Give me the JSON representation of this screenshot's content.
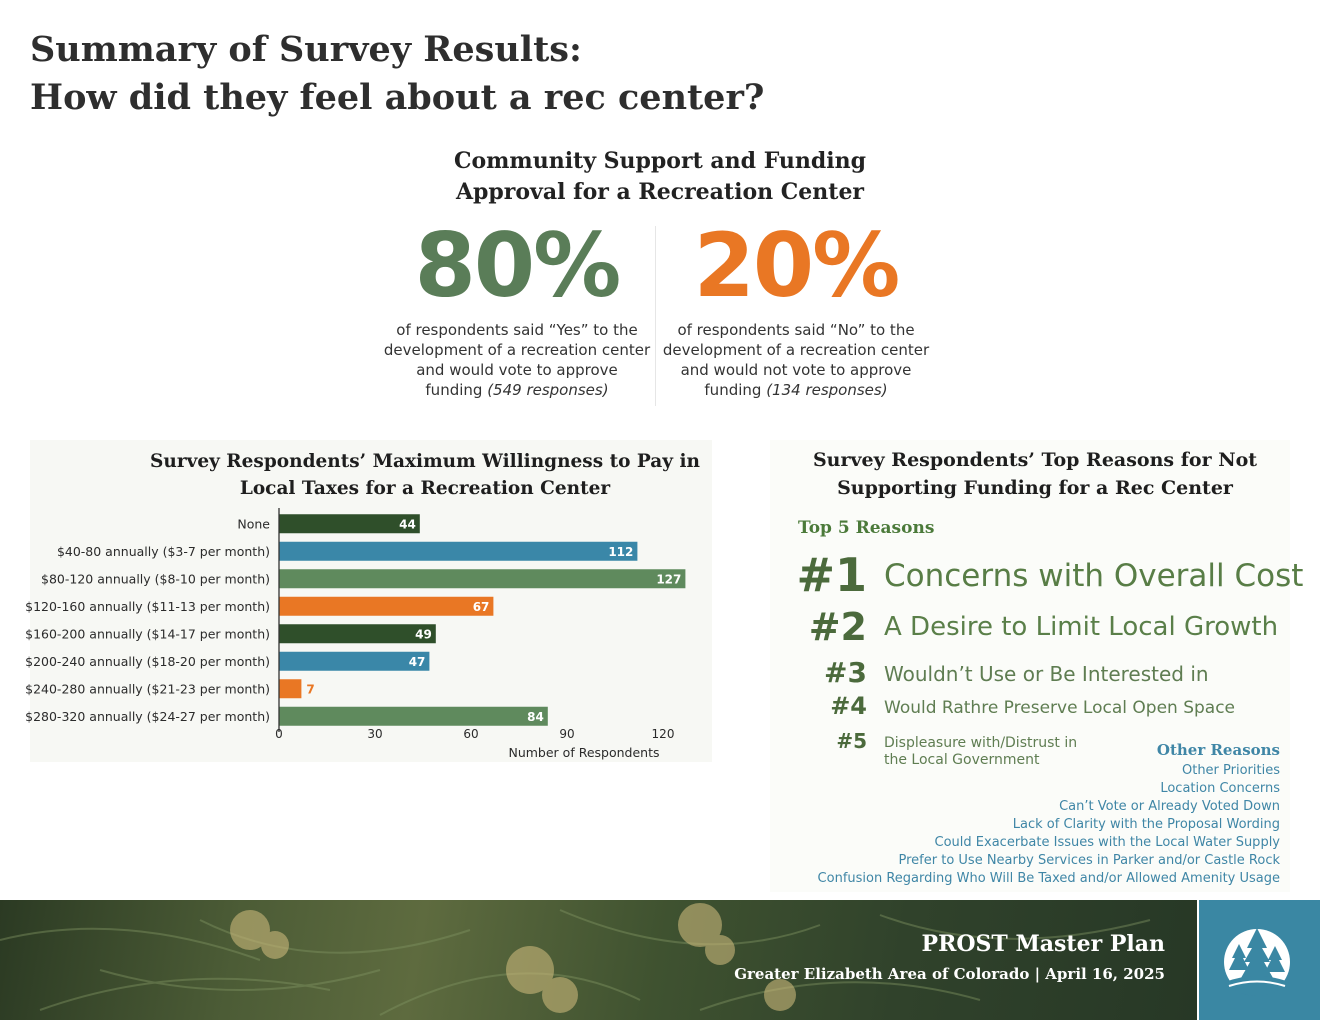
{
  "page": {
    "title_line1": "Summary of Survey Results:",
    "title_line2": "How did they feel about a rec center?"
  },
  "support": {
    "heading_line1": "Community Support and Funding",
    "heading_line2": "Approval for a Recreation Center",
    "yes": {
      "percent": "80%",
      "color": "#5a7d58",
      "line1": "of respondents said “Yes” to the",
      "line2": "development of a recreation center",
      "line3": "and would vote to approve",
      "line4": "funding",
      "responses": "(549 responses)"
    },
    "no": {
      "percent": "20%",
      "color": "#e97724",
      "line1": "of respondents said “No” to the",
      "line2": "development of a recreation center",
      "line3": "and would not vote to approve",
      "line4": "funding",
      "responses": "(134 responses)"
    }
  },
  "chart_data": {
    "type": "bar",
    "orientation": "horizontal",
    "title_line1": "Survey Respondents’ Maximum Willingness to Pay in",
    "title_line2": "Local Taxes for a Recreation Center",
    "categories": [
      "None",
      "$40-80 annually ($3-7 per month)",
      "$80-120 annually ($8-10 per month)",
      "$120-160 annually ($11-13 per month)",
      "$160-200 annually ($14-17 per month)",
      "$200-240 annually ($18-20 per month)",
      "$240-280 annually ($21-23 per month)",
      "$280-320 annually ($24-27 per month)"
    ],
    "values": [
      44,
      112,
      127,
      67,
      49,
      47,
      7,
      84
    ],
    "bar_colors": [
      "#2f4f2a",
      "#3a87a8",
      "#5f8a5d",
      "#e97724",
      "#2f4f2a",
      "#3a87a8",
      "#e97724",
      "#5f8a5d"
    ],
    "xlabel": "Number of Respondents",
    "ylabel": "",
    "xlim": [
      0,
      130
    ],
    "xticks": [
      0,
      30,
      60,
      90,
      120
    ],
    "grid": false,
    "data_labels": true
  },
  "reasons": {
    "heading_line1": "Survey Respondents’ Top Reasons for Not",
    "heading_line2": "Supporting Funding for a Rec Center",
    "top5_label": "Top 5 Reasons",
    "top": [
      {
        "rank": "#1",
        "text": "Concerns with Overall Cost"
      },
      {
        "rank": "#2",
        "text": "A Desire to Limit Local Growth"
      },
      {
        "rank": "#3",
        "text": "Wouldn’t Use or Be Interested in"
      },
      {
        "rank": "#4",
        "text": "Would Rathre Preserve Local Open Space"
      },
      {
        "rank": "#5",
        "text": "Displeasure with/Distrust in",
        "text2": "the  Local Government"
      }
    ],
    "other_label": "Other Reasons",
    "other": [
      "Other Priorities",
      "Location Concerns",
      "Can’t Vote or Already Voted Down",
      "Lack of Clarity with the Proposal Wording",
      "Could Exacerbate Issues with the Local Water Supply",
      "Prefer to Use Nearby Services in Parker and/or Castle Rock",
      "Confusion Regarding Who Will Be Taxed and/or Allowed Amenity Usage"
    ]
  },
  "footer": {
    "plan_title": "PROST Master Plan",
    "subtitle": "Greater Elizabeth Area of Colorado  |  April 16, 2025",
    "logo_icon": "trees-circle-logo"
  }
}
